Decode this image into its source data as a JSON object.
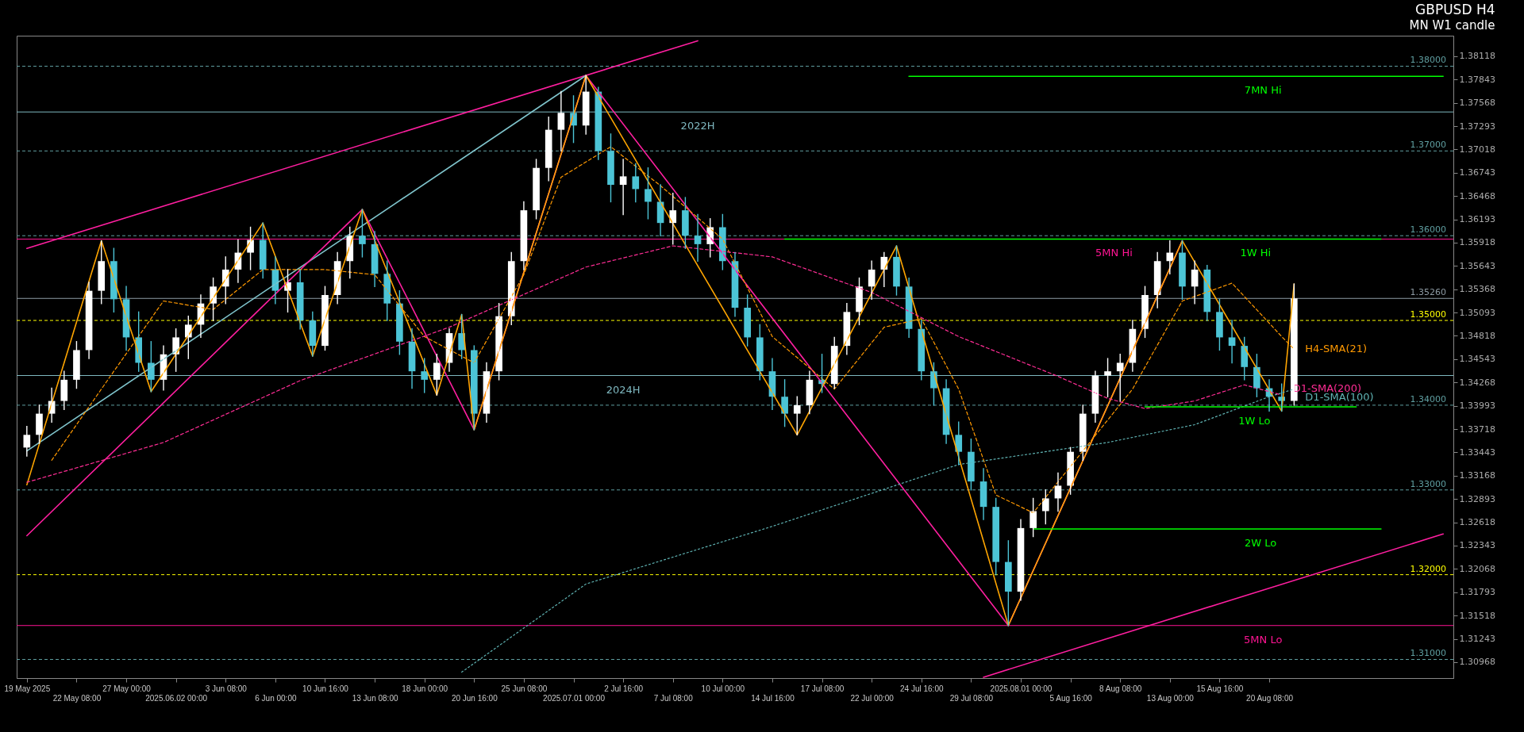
{
  "chart_data": {
    "type": "candlestick",
    "title": "GBPUSD H4",
    "subtitle": "MN W1 candle",
    "categories": [
      "19 May 2025",
      null,
      null,
      null,
      "22 May 08:00",
      null,
      null,
      null,
      "27 May 00:00",
      null,
      null,
      null,
      "2025.06.02 00:00",
      null,
      null,
      null,
      "3 Jun 08:00",
      null,
      null,
      null,
      "6 Jun 00:00",
      null,
      null,
      null,
      "10 Jun 16:00",
      null,
      null,
      null,
      "13 Jun 08:00",
      null,
      null,
      null,
      "18 Jun 00:00",
      null,
      null,
      null,
      "20 Jun 16:00",
      null,
      null,
      null,
      "25 Jun 08:00",
      null,
      null,
      null,
      "2025.07.01 00:00",
      null,
      null,
      null,
      "2 Jul 16:00",
      null,
      null,
      null,
      "7 Jul 08:00",
      null,
      null,
      null,
      "10 Jul 00:00",
      null,
      null,
      null,
      "14 Jul 16:00",
      null,
      null,
      null,
      "17 Jul 08:00",
      null,
      null,
      null,
      "22 Jul 00:00",
      null,
      null,
      null,
      "24 Jul 16:00",
      null,
      null,
      null,
      "29 Jul 08:00",
      null,
      null,
      null,
      "2025.08.01 00:00",
      null,
      null,
      null,
      "5 Aug 16:00",
      null,
      null,
      null,
      "8 Aug 08:00",
      null,
      null,
      null,
      "13 Aug 00:00",
      null,
      null,
      null,
      "15 Aug 16:00",
      null,
      null,
      null,
      "20 Aug 08:00",
      null,
      null,
      null,
      null,
      null,
      null,
      null,
      null,
      null,
      null,
      null,
      null,
      null,
      null
    ],
    "ohlc": [
      [
        1.335,
        1.3375,
        1.334,
        1.3365
      ],
      [
        1.3365,
        1.34,
        1.3355,
        1.339
      ],
      [
        1.339,
        1.342,
        1.338,
        1.3405
      ],
      [
        1.3405,
        1.344,
        1.3395,
        1.343
      ],
      [
        1.343,
        1.3475,
        1.342,
        1.3465
      ],
      [
        1.3465,
        1.3545,
        1.3455,
        1.3535
      ],
      [
        1.3535,
        1.3594,
        1.352,
        1.357
      ],
      [
        1.357,
        1.3585,
        1.351,
        1.3525
      ],
      [
        1.3525,
        1.354,
        1.3465,
        1.348
      ],
      [
        1.348,
        1.351,
        1.344,
        1.345
      ],
      [
        1.345,
        1.3475,
        1.3416,
        1.343
      ],
      [
        1.343,
        1.347,
        1.3418,
        1.346
      ],
      [
        1.346,
        1.349,
        1.344,
        1.348
      ],
      [
        1.348,
        1.3505,
        1.3455,
        1.3495
      ],
      [
        1.3495,
        1.353,
        1.348,
        1.352
      ],
      [
        1.352,
        1.355,
        1.35,
        1.354
      ],
      [
        1.354,
        1.3575,
        1.352,
        1.356
      ],
      [
        1.356,
        1.3595,
        1.3545,
        1.358
      ],
      [
        1.358,
        1.361,
        1.356,
        1.3595
      ],
      [
        1.3595,
        1.3615,
        1.355,
        1.356
      ],
      [
        1.356,
        1.3575,
        1.352,
        1.3535
      ],
      [
        1.3535,
        1.356,
        1.351,
        1.3545
      ],
      [
        1.3545,
        1.356,
        1.349,
        1.35
      ],
      [
        1.35,
        1.351,
        1.3458,
        1.347
      ],
      [
        1.347,
        1.354,
        1.3465,
        1.353
      ],
      [
        1.353,
        1.358,
        1.352,
        1.357
      ],
      [
        1.357,
        1.361,
        1.355,
        1.36
      ],
      [
        1.36,
        1.3631,
        1.3575,
        1.359
      ],
      [
        1.359,
        1.3605,
        1.354,
        1.3555
      ],
      [
        1.3555,
        1.357,
        1.35,
        1.352
      ],
      [
        1.352,
        1.3535,
        1.346,
        1.3475
      ],
      [
        1.3475,
        1.349,
        1.342,
        1.344
      ],
      [
        1.344,
        1.3455,
        1.3415,
        1.343
      ],
      [
        1.343,
        1.346,
        1.3412,
        1.345
      ],
      [
        1.345,
        1.349,
        1.344,
        1.3485
      ],
      [
        1.3485,
        1.3507,
        1.3455,
        1.3465
      ],
      [
        1.3465,
        1.347,
        1.3371,
        1.339
      ],
      [
        1.339,
        1.345,
        1.338,
        1.344
      ],
      [
        1.344,
        1.352,
        1.343,
        1.3505
      ],
      [
        1.3505,
        1.358,
        1.3495,
        1.357
      ],
      [
        1.357,
        1.364,
        1.356,
        1.363
      ],
      [
        1.363,
        1.369,
        1.362,
        1.368
      ],
      [
        1.368,
        1.374,
        1.3665,
        1.3725
      ],
      [
        1.3725,
        1.377,
        1.37,
        1.3745
      ],
      [
        1.3745,
        1.3765,
        1.371,
        1.373
      ],
      [
        1.373,
        1.3789,
        1.372,
        1.377
      ],
      [
        1.377,
        1.3775,
        1.369,
        1.37
      ],
      [
        1.37,
        1.372,
        1.364,
        1.366
      ],
      [
        1.366,
        1.369,
        1.3625,
        1.367
      ],
      [
        1.367,
        1.3685,
        1.364,
        1.3655
      ],
      [
        1.3655,
        1.368,
        1.362,
        1.364
      ],
      [
        1.364,
        1.366,
        1.36,
        1.3615
      ],
      [
        1.3615,
        1.365,
        1.359,
        1.363
      ],
      [
        1.363,
        1.3645,
        1.3585,
        1.36
      ],
      [
        1.36,
        1.3625,
        1.357,
        1.359
      ],
      [
        1.359,
        1.362,
        1.3575,
        1.361
      ],
      [
        1.361,
        1.3625,
        1.356,
        1.357
      ],
      [
        1.357,
        1.358,
        1.3505,
        1.3515
      ],
      [
        1.3515,
        1.353,
        1.347,
        1.348
      ],
      [
        1.348,
        1.3495,
        1.343,
        1.344
      ],
      [
        1.344,
        1.3455,
        1.3395,
        1.341
      ],
      [
        1.341,
        1.343,
        1.3375,
        1.339
      ],
      [
        1.339,
        1.341,
        1.3365,
        1.34
      ],
      [
        1.34,
        1.344,
        1.339,
        1.343
      ],
      [
        1.343,
        1.346,
        1.3415,
        1.3425
      ],
      [
        1.3425,
        1.348,
        1.342,
        1.347
      ],
      [
        1.347,
        1.352,
        1.346,
        1.351
      ],
      [
        1.351,
        1.355,
        1.3495,
        1.354
      ],
      [
        1.354,
        1.357,
        1.3525,
        1.356
      ],
      [
        1.356,
        1.358,
        1.354,
        1.3575
      ],
      [
        1.3575,
        1.3588,
        1.353,
        1.354
      ],
      [
        1.354,
        1.355,
        1.348,
        1.349
      ],
      [
        1.349,
        1.35,
        1.343,
        1.344
      ],
      [
        1.344,
        1.345,
        1.34,
        1.342
      ],
      [
        1.342,
        1.343,
        1.3355,
        1.3365
      ],
      [
        1.3365,
        1.338,
        1.333,
        1.3345
      ],
      [
        1.3345,
        1.336,
        1.33,
        1.331
      ],
      [
        1.331,
        1.3325,
        1.3265,
        1.328
      ],
      [
        1.328,
        1.329,
        1.32,
        1.3215
      ],
      [
        1.3215,
        1.324,
        1.314,
        1.318
      ],
      [
        1.318,
        1.3265,
        1.317,
        1.3255
      ],
      [
        1.3255,
        1.329,
        1.3245,
        1.3275
      ],
      [
        1.3275,
        1.33,
        1.326,
        1.329
      ],
      [
        1.329,
        1.332,
        1.3275,
        1.3305
      ],
      [
        1.3305,
        1.335,
        1.3295,
        1.3345
      ],
      [
        1.3345,
        1.34,
        1.3335,
        1.339
      ],
      [
        1.339,
        1.344,
        1.338,
        1.3435
      ],
      [
        1.3435,
        1.3455,
        1.341,
        1.344
      ],
      [
        1.344,
        1.346,
        1.3405,
        1.345
      ],
      [
        1.345,
        1.35,
        1.344,
        1.349
      ],
      [
        1.349,
        1.354,
        1.348,
        1.353
      ],
      [
        1.353,
        1.358,
        1.3515,
        1.357
      ],
      [
        1.357,
        1.3594,
        1.3555,
        1.358
      ],
      [
        1.358,
        1.3594,
        1.3525,
        1.354
      ],
      [
        1.354,
        1.357,
        1.352,
        1.356
      ],
      [
        1.356,
        1.3565,
        1.35,
        1.351
      ],
      [
        1.351,
        1.3525,
        1.3465,
        1.348
      ],
      [
        1.348,
        1.35,
        1.345,
        1.347
      ],
      [
        1.347,
        1.348,
        1.343,
        1.3445
      ],
      [
        1.3445,
        1.346,
        1.341,
        1.342
      ],
      [
        1.342,
        1.343,
        1.3393,
        1.341
      ],
      [
        1.341,
        1.3425,
        1.3393,
        1.3405
      ],
      [
        1.3405,
        1.3543,
        1.34,
        1.3526
      ],
      null,
      null,
      null,
      null,
      null,
      null,
      null,
      null,
      null,
      null,
      null,
      null
    ],
    "colors": [
      "#ffffff",
      "#ffffff",
      "#ffffff",
      "#ffffff",
      "#ffffff",
      "#ffffff",
      "#ffffff",
      "#4cc4d6",
      "#4cc4d6",
      "#4cc4d6",
      "#4cc4d6",
      "#ffffff",
      "#ffffff",
      "#ffffff",
      "#ffffff",
      "#ffffff",
      "#ffffff",
      "#ffffff",
      "#ffffff",
      "#4cc4d6",
      "#4cc4d6",
      "#ffffff",
      "#4cc4d6",
      "#4cc4d6",
      "#ffffff",
      "#ffffff",
      "#ffffff",
      "#4cc4d6",
      "#4cc4d6",
      "#4cc4d6",
      "#4cc4d6",
      "#4cc4d6",
      "#4cc4d6",
      "#ffffff",
      "#ffffff",
      "#4cc4d6",
      "#4cc4d6",
      "#ffffff",
      "#ffffff",
      "#ffffff",
      "#ffffff",
      "#ffffff",
      "#ffffff",
      "#ffffff",
      "#4cc4d6",
      "#ffffff",
      "#4cc4d6",
      "#4cc4d6",
      "#ffffff",
      "#4cc4d6",
      "#4cc4d6",
      "#4cc4d6",
      "#ffffff",
      "#4cc4d6",
      "#4cc4d6",
      "#ffffff",
      "#4cc4d6",
      "#4cc4d6",
      "#4cc4d6",
      "#4cc4d6",
      "#4cc4d6",
      "#4cc4d6",
      "#ffffff",
      "#ffffff",
      "#4cc4d6",
      "#ffffff",
      "#ffffff",
      "#ffffff",
      "#ffffff",
      "#ffffff",
      "#4cc4d6",
      "#4cc4d6",
      "#4cc4d6",
      "#4cc4d6",
      "#4cc4d6",
      "#4cc4d6",
      "#4cc4d6",
      "#4cc4d6",
      "#4cc4d6",
      "#4cc4d6",
      "#ffffff",
      "#ffffff",
      "#ffffff",
      "#ffffff",
      "#ffffff",
      "#ffffff",
      "#ffffff",
      "#ffffff",
      "#ffffff",
      "#ffffff",
      "#ffffff",
      "#ffffff",
      "#ffffff",
      "#4cc4d6",
      "#ffffff",
      "#4cc4d6",
      "#4cc4d6",
      "#4cc4d6",
      "#4cc4d6",
      "#4cc4d6",
      "#4cc4d6",
      "#4cc4d6",
      "#ffffff",
      null,
      null,
      null,
      null,
      null,
      null,
      null,
      null,
      null,
      null,
      null,
      null
    ],
    "ylim": [
      1.3078,
      1.3836
    ],
    "yticks": [
      1.38118,
      1.37843,
      1.37568,
      1.37293,
      1.37018,
      1.36743,
      1.36468,
      1.36193,
      1.35918,
      1.35643,
      1.35368,
      1.35093,
      1.34818,
      1.34543,
      1.34268,
      1.33993,
      1.33718,
      1.33443,
      1.33168,
      1.32893,
      1.32618,
      1.32343,
      1.32068,
      1.31793,
      1.31518,
      1.31243,
      1.30968
    ],
    "series": [
      {
        "type": "line",
        "color": "#ff1fa0",
        "line_style": "solid",
        "values": [
          1.3585,
          null,
          null,
          null,
          null,
          null,
          null,
          null,
          null,
          null,
          null,
          null,
          null,
          null,
          null,
          null,
          null,
          null,
          null,
          null,
          null,
          null,
          null,
          null,
          null,
          null,
          null,
          null,
          null,
          null,
          null,
          null,
          null,
          null,
          null,
          null,
          null,
          null,
          null,
          null,
          null,
          null,
          null,
          null,
          null,
          null,
          null,
          null,
          null,
          null,
          null,
          null,
          null,
          null,
          1.383,
          null,
          null,
          null,
          null,
          null,
          null,
          null,
          null,
          null,
          null,
          null,
          null,
          null,
          null,
          null,
          null,
          null,
          null,
          null,
          null,
          null,
          null,
          null,
          null,
          null,
          null,
          null,
          null,
          null,
          null,
          null,
          null,
          null,
          null,
          null,
          null,
          null,
          null,
          null,
          null,
          null,
          null,
          null,
          null,
          null,
          null,
          null,
          null,
          null,
          null,
          null,
          null,
          null,
          null,
          null,
          null,
          null,
          null,
          null,
          null
        ]
      },
      {
        "type": "line",
        "color": "#ff1fa0",
        "line_style": "solid",
        "values": [
          null,
          null,
          null,
          null,
          null,
          null,
          null,
          null,
          null,
          null,
          null,
          null,
          null,
          null,
          null,
          null,
          null,
          null,
          null,
          null,
          null,
          null,
          null,
          null,
          null,
          null,
          null,
          null,
          null,
          null,
          null,
          null,
          null,
          null,
          null,
          null,
          null,
          null,
          null,
          null,
          null,
          null,
          null,
          null,
          null,
          null,
          null,
          null,
          null,
          null,
          null,
          null,
          null,
          null,
          null,
          null,
          null,
          null,
          null,
          null,
          null,
          null,
          null,
          null,
          null,
          null,
          null,
          null,
          null,
          null,
          null,
          null,
          null,
          null,
          null,
          null,
          null,
          1.3079,
          null,
          null,
          null,
          null,
          null,
          null,
          null,
          null,
          null,
          null,
          null,
          null,
          null,
          null,
          null,
          null,
          null,
          null,
          null,
          null,
          null,
          null,
          null,
          null,
          null,
          null,
          null,
          null,
          null,
          null,
          null,
          null,
          null,
          null,
          null,
          null,
          1.3248
        ]
      },
      {
        "type": "line",
        "color": "#7fc4cc",
        "line_style": "solid",
        "values": [
          1.3346,
          null,
          null,
          null,
          null,
          null,
          null,
          null,
          null,
          null,
          null,
          null,
          null,
          null,
          null,
          null,
          null,
          null,
          null,
          null,
          null,
          null,
          null,
          null,
          null,
          null,
          null,
          null,
          null,
          null,
          null,
          null,
          null,
          null,
          null,
          null,
          null,
          null,
          null,
          null,
          null,
          null,
          null,
          null,
          null,
          1.3789,
          null,
          null,
          null,
          null,
          null,
          null,
          null,
          null,
          null,
          null,
          null,
          null,
          null,
          null,
          null,
          null,
          null,
          null,
          null,
          null,
          null,
          null,
          null,
          null,
          null,
          null,
          null,
          null,
          null,
          null,
          null,
          null,
          null,
          null,
          null,
          null,
          null,
          null,
          null,
          null,
          null,
          null,
          null,
          null,
          null,
          null,
          null,
          null,
          null,
          null,
          null,
          null,
          null,
          null,
          null,
          null,
          null,
          null,
          null,
          null,
          null,
          null,
          null,
          null,
          null,
          null,
          null,
          null,
          null
        ]
      },
      {
        "type": "line",
        "color": "#ff1fa0",
        "line_style": "solid",
        "values": [
          1.3246,
          null,
          null,
          null,
          null,
          null,
          null,
          null,
          null,
          null,
          null,
          null,
          null,
          null,
          null,
          null,
          null,
          null,
          null,
          null,
          null,
          null,
          null,
          null,
          null,
          null,
          null,
          1.3631,
          null,
          null,
          null,
          null,
          null,
          null,
          null,
          null,
          1.3371,
          null,
          null,
          null,
          null,
          null,
          null,
          null,
          null,
          1.3789,
          null,
          null,
          null,
          null,
          null,
          null,
          null,
          null,
          null,
          null,
          null,
          null,
          null,
          null,
          null,
          null,
          null,
          null,
          null,
          null,
          null,
          null,
          null,
          null,
          null,
          null,
          null,
          null,
          null,
          null,
          null,
          null,
          null,
          1.314,
          null,
          null,
          null,
          null,
          null,
          null,
          null,
          null,
          null,
          null,
          null,
          null,
          null,
          1.3594,
          null,
          null,
          null,
          null,
          null,
          null,
          null,
          null,
          null,
          null,
          null,
          null,
          null,
          null,
          null,
          null,
          null,
          null,
          null,
          null,
          null
        ]
      },
      {
        "type": "line",
        "color": "#ffa500",
        "line_style": "solid",
        "values": [
          1.3306,
          null,
          null,
          null,
          null,
          null,
          1.3594,
          null,
          null,
          null,
          1.3416,
          null,
          null,
          null,
          null,
          null,
          null,
          null,
          null,
          1.3615,
          null,
          null,
          null,
          1.3458,
          null,
          null,
          null,
          1.3631,
          null,
          null,
          null,
          null,
          null,
          1.3412,
          null,
          1.3507,
          1.3371,
          null,
          null,
          null,
          null,
          null,
          null,
          null,
          null,
          1.3789,
          null,
          null,
          null,
          null,
          null,
          null,
          null,
          null,
          null,
          null,
          null,
          null,
          null,
          null,
          null,
          null,
          1.3365,
          null,
          null,
          null,
          null,
          null,
          null,
          null,
          1.3588,
          null,
          null,
          null,
          null,
          null,
          null,
          null,
          null,
          1.314,
          null,
          null,
          null,
          null,
          null,
          null,
          null,
          null,
          null,
          null,
          null,
          null,
          null,
          1.3594,
          null,
          null,
          null,
          null,
          null,
          null,
          null,
          1.3393,
          1.3543,
          null,
          null,
          null,
          null,
          null,
          null,
          null,
          null,
          null,
          null,
          null,
          null
        ]
      },
      {
        "type": "line",
        "name": "H4-SMA(21)",
        "color": "#ff9900",
        "line_style": "dashed",
        "values": [
          null,
          null,
          1.3335,
          null,
          null,
          null,
          null,
          1.344,
          null,
          null,
          null,
          1.3523,
          null,
          null,
          null,
          1.3513,
          null,
          null,
          null,
          1.356,
          null,
          null,
          null,
          null,
          1.356,
          null,
          null,
          null,
          1.3554,
          null,
          null,
          null,
          1.3481,
          null,
          null,
          null,
          1.345,
          null,
          null,
          null,
          1.3554,
          null,
          null,
          1.3669,
          null,
          null,
          null,
          1.3705,
          null,
          null,
          null,
          1.3659,
          null,
          null,
          null,
          null,
          1.3596,
          null,
          null,
          null,
          1.3481,
          null,
          null,
          null,
          null,
          1.3419,
          null,
          null,
          null,
          1.3492,
          null,
          null,
          1.3502,
          null,
          null,
          1.3419,
          null,
          null,
          1.3294,
          null,
          null,
          1.3273,
          null,
          null,
          null,
          1.3346,
          null,
          null,
          null,
          1.3419,
          null,
          null,
          null,
          1.3523,
          null,
          null,
          null,
          1.3544,
          null,
          null,
          null,
          1.3481,
          1.3466,
          null,
          null,
          null,
          null,
          null,
          null,
          null,
          null,
          null,
          null,
          null,
          null
        ]
      },
      {
        "type": "line",
        "name": "D1-SMA(200)",
        "color": "#ff2d95",
        "line_style": "dashed",
        "values": [
          1.3309,
          null,
          null,
          null,
          null,
          null,
          null,
          null,
          null,
          null,
          null,
          1.3356,
          null,
          null,
          null,
          null,
          null,
          null,
          null,
          null,
          null,
          null,
          1.3429,
          null,
          null,
          null,
          null,
          null,
          null,
          null,
          null,
          null,
          null,
          null,
          1.3492,
          null,
          null,
          null,
          null,
          null,
          null,
          null,
          null,
          null,
          null,
          1.3563,
          null,
          null,
          null,
          null,
          null,
          null,
          1.3588,
          null,
          null,
          null,
          null,
          null,
          null,
          null,
          1.3575,
          null,
          null,
          null,
          null,
          null,
          null,
          null,
          1.3533,
          null,
          null,
          null,
          null,
          null,
          null,
          1.3481,
          null,
          null,
          null,
          null,
          null,
          null,
          null,
          1.3434,
          null,
          null,
          null,
          1.3408,
          null,
          null,
          1.3396,
          null,
          null,
          null,
          1.3405,
          null,
          null,
          null,
          1.3424,
          null,
          null,
          1.3412,
          null,
          null,
          null,
          null,
          null,
          null,
          null,
          null,
          null,
          null,
          null,
          null,
          null
        ]
      },
      {
        "type": "line",
        "name": "D1-SMA(100)",
        "color": "#5fb3b3",
        "line_style": "dotted",
        "values": [
          null,
          null,
          null,
          null,
          null,
          null,
          null,
          null,
          null,
          null,
          null,
          null,
          null,
          null,
          null,
          null,
          null,
          null,
          null,
          null,
          null,
          null,
          null,
          null,
          null,
          null,
          null,
          null,
          null,
          null,
          null,
          null,
          null,
          null,
          null,
          1.3085,
          null,
          null,
          null,
          null,
          null,
          null,
          null,
          null,
          null,
          1.3189,
          null,
          null,
          null,
          null,
          null,
          null,
          null,
          null,
          null,
          null,
          null,
          null,
          null,
          null,
          1.3257,
          null,
          null,
          null,
          null,
          null,
          null,
          null,
          null,
          null,
          null,
          null,
          null,
          null,
          null,
          1.333,
          null,
          null,
          null,
          null,
          null,
          null,
          null,
          null,
          null,
          null,
          null,
          1.3356,
          null,
          null,
          null,
          null,
          null,
          null,
          1.3377,
          null,
          null,
          null,
          null,
          null,
          1.341,
          null,
          1.3419,
          null,
          null,
          null,
          null,
          null,
          null,
          null,
          null,
          null,
          null,
          null,
          null
        ]
      },
      {
        "type": "line",
        "name": "7MN Hi",
        "color": "#00ff00",
        "line_style": "solid",
        "values": [
          null,
          null,
          null,
          null,
          null,
          null,
          null,
          null,
          null,
          null,
          null,
          null,
          null,
          null,
          null,
          null,
          null,
          null,
          null,
          null,
          null,
          null,
          null,
          null,
          null,
          null,
          null,
          null,
          null,
          null,
          null,
          null,
          null,
          null,
          null,
          null,
          null,
          null,
          null,
          null,
          null,
          null,
          null,
          null,
          null,
          null,
          null,
          null,
          null,
          null,
          null,
          null,
          null,
          null,
          null,
          null,
          null,
          null,
          null,
          null,
          null,
          null,
          null,
          null,
          null,
          null,
          null,
          null,
          null,
          null,
          null,
          1.3788,
          null,
          null,
          null,
          null,
          null,
          null,
          null,
          null,
          null,
          null,
          null,
          null,
          null,
          null,
          null,
          null,
          null,
          null,
          null,
          null,
          null,
          null,
          null,
          null,
          null,
          null,
          null,
          null,
          null,
          null,
          null,
          null,
          null,
          null,
          null,
          null,
          null,
          null,
          null,
          null,
          null,
          null,
          1.3788
        ]
      },
      {
        "type": "line",
        "name": "1W Hi",
        "color": "#00ff00",
        "line_style": "solid",
        "values": [
          null,
          null,
          null,
          null,
          null,
          null,
          null,
          null,
          null,
          null,
          null,
          null,
          null,
          null,
          null,
          null,
          null,
          null,
          null,
          null,
          null,
          null,
          null,
          null,
          null,
          null,
          null,
          null,
          null,
          null,
          null,
          null,
          null,
          null,
          null,
          null,
          null,
          null,
          null,
          null,
          null,
          null,
          null,
          null,
          null,
          null,
          null,
          null,
          null,
          null,
          null,
          null,
          null,
          null,
          null,
          null,
          null,
          null,
          null,
          null,
          null,
          1.3596,
          null,
          null,
          null,
          null,
          null,
          null,
          null,
          null,
          null,
          null,
          null,
          null,
          null,
          null,
          null,
          null,
          null,
          null,
          null,
          null,
          null,
          null,
          null,
          null,
          null,
          null,
          null,
          null,
          null,
          null,
          null,
          null,
          null,
          null,
          null,
          null,
          null,
          null,
          null,
          null,
          null,
          null,
          null,
          null,
          null,
          null,
          null,
          1.3596,
          null,
          null,
          null,
          null,
          null
        ]
      },
      {
        "type": "line",
        "name": "1W Lo",
        "color": "#00ff00",
        "line_style": "solid",
        "values": [
          null,
          null,
          null,
          null,
          null,
          null,
          null,
          null,
          null,
          null,
          null,
          null,
          null,
          null,
          null,
          null,
          null,
          null,
          null,
          null,
          null,
          null,
          null,
          null,
          null,
          null,
          null,
          null,
          null,
          null,
          null,
          null,
          null,
          null,
          null,
          null,
          null,
          null,
          null,
          null,
          null,
          null,
          null,
          null,
          null,
          null,
          null,
          null,
          null,
          null,
          null,
          null,
          null,
          null,
          null,
          null,
          null,
          null,
          null,
          null,
          null,
          null,
          null,
          null,
          null,
          null,
          null,
          null,
          null,
          null,
          null,
          null,
          null,
          null,
          null,
          null,
          null,
          null,
          null,
          null,
          null,
          null,
          null,
          null,
          null,
          null,
          null,
          null,
          null,
          null,
          1.3398,
          null,
          null,
          null,
          null,
          null,
          null,
          null,
          null,
          null,
          null,
          null,
          null,
          null,
          null,
          null,
          null,
          1.3398,
          null,
          null,
          null,
          null,
          null,
          null,
          null
        ]
      },
      {
        "type": "line",
        "name": "2W Lo",
        "color": "#00ff00",
        "line_style": "solid",
        "values": [
          null,
          null,
          null,
          null,
          null,
          null,
          null,
          null,
          null,
          null,
          null,
          null,
          null,
          null,
          null,
          null,
          null,
          null,
          null,
          null,
          null,
          null,
          null,
          null,
          null,
          null,
          null,
          null,
          null,
          null,
          null,
          null,
          null,
          null,
          null,
          null,
          null,
          null,
          null,
          null,
          null,
          null,
          null,
          null,
          null,
          null,
          null,
          null,
          null,
          null,
          null,
          null,
          null,
          null,
          null,
          null,
          null,
          null,
          null,
          null,
          null,
          null,
          null,
          null,
          null,
          null,
          null,
          null,
          null,
          null,
          null,
          null,
          null,
          null,
          null,
          null,
          null,
          null,
          null,
          null,
          null,
          1.3254,
          null,
          null,
          null,
          null,
          null,
          null,
          null,
          null,
          null,
          null,
          null,
          null,
          null,
          null,
          null,
          null,
          null,
          null,
          null,
          null,
          null,
          null,
          null,
          null,
          null,
          null,
          null,
          1.3254,
          null,
          null,
          null,
          null,
          null
        ]
      }
    ],
    "ref_lines": [
      {
        "axis": "y",
        "value": 1.38,
        "label": "1.38000",
        "color": "#5f9ea0",
        "line_style": "dashed"
      },
      {
        "axis": "y",
        "value": 1.37,
        "label": "1.37000",
        "color": "#5f9ea0",
        "line_style": "dashed"
      },
      {
        "axis": "y",
        "value": 1.36,
        "label": "1.36000",
        "color": "#5f9ea0",
        "line_style": "dashed"
      },
      {
        "axis": "y",
        "value": 1.3526,
        "label": "1.35260",
        "color": "#8d9aa3",
        "line_style": "solid"
      },
      {
        "axis": "y",
        "value": 1.35,
        "label": "1.35000",
        "color": "#ffff00",
        "line_style": "dashed"
      },
      {
        "axis": "y",
        "value": 1.34,
        "label": "1.34000",
        "color": "#5f9ea0",
        "line_style": "dashed"
      },
      {
        "axis": "y",
        "value": 1.33,
        "label": "1.33000",
        "color": "#5f9ea0",
        "line_style": "dashed"
      },
      {
        "axis": "y",
        "value": 1.32,
        "label": "1.32000",
        "color": "#ffff00",
        "line_style": "dashed"
      },
      {
        "axis": "y",
        "value": 1.31,
        "label": "1.31000",
        "color": "#5f9ea0",
        "line_style": "dashed"
      },
      {
        "axis": "y",
        "value": 1.3746,
        "label": "2022H",
        "color": "#7fb8c0",
        "line_style": "solid"
      },
      {
        "axis": "y",
        "value": 1.3435,
        "label": "2024H",
        "color": "#7fb8c0",
        "line_style": "solid"
      },
      {
        "axis": "y",
        "value": 1.3596,
        "label": "5MN Hi",
        "color": "#ff1493",
        "line_style": "solid"
      },
      {
        "axis": "y",
        "value": 1.314,
        "label": "5MN Lo",
        "color": "#ff1493",
        "line_style": "solid"
      }
    ]
  }
}
